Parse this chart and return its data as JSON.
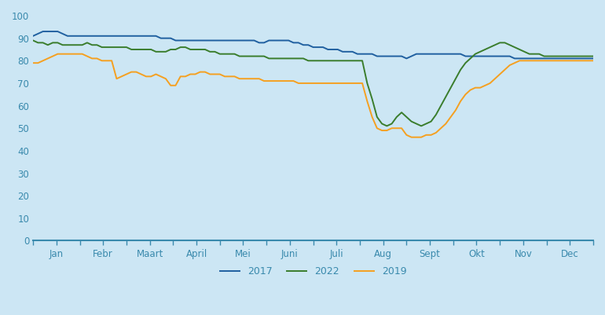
{
  "background_color": "#cce6f4",
  "plot_bg_color": "#cce6f4",
  "line_color_2022": "#3a7d2c",
  "line_color_2019": "#f5a020",
  "line_color_2017": "#2060a0",
  "ylim": [
    0,
    100
  ],
  "yticks": [
    0,
    10,
    20,
    30,
    40,
    50,
    60,
    70,
    80,
    90,
    100
  ],
  "months": [
    "Jan",
    "Febr",
    "Maart",
    "April",
    "Mei",
    "Juni",
    "Juli",
    "Aug",
    "Sept",
    "Okt",
    "Nov",
    "Dec"
  ],
  "legend_labels": [
    "2022",
    "2019",
    "2017"
  ],
  "y2022": [
    89,
    88,
    88,
    87,
    88,
    88,
    87,
    87,
    87,
    87,
    87,
    88,
    87,
    87,
    86,
    86,
    86,
    86,
    86,
    86,
    85,
    85,
    85,
    85,
    85,
    84,
    84,
    84,
    85,
    85,
    86,
    86,
    85,
    85,
    85,
    85,
    84,
    84,
    83,
    83,
    83,
    83,
    82,
    82,
    82,
    82,
    82,
    82,
    81,
    81,
    81,
    81,
    81,
    81,
    81,
    81,
    80,
    80,
    80,
    80,
    80,
    80,
    80,
    80,
    80,
    80,
    80,
    80,
    70,
    63,
    55,
    52,
    51,
    52,
    55,
    57,
    55,
    53,
    52,
    51,
    52,
    53,
    56,
    60,
    64,
    68,
    72,
    76,
    79,
    81,
    83,
    84,
    85,
    86,
    87,
    88,
    88,
    87,
    86,
    85,
    84,
    83,
    83,
    83,
    82,
    82,
    82,
    82,
    82,
    82,
    82,
    82,
    82,
    82,
    82
  ],
  "y2019": [
    79,
    79,
    80,
    81,
    82,
    83,
    83,
    83,
    83,
    83,
    83,
    82,
    81,
    81,
    80,
    80,
    80,
    72,
    73,
    74,
    75,
    75,
    74,
    73,
    73,
    74,
    73,
    72,
    69,
    69,
    73,
    73,
    74,
    74,
    75,
    75,
    74,
    74,
    74,
    73,
    73,
    73,
    72,
    72,
    72,
    72,
    72,
    71,
    71,
    71,
    71,
    71,
    71,
    71,
    70,
    70,
    70,
    70,
    70,
    70,
    70,
    70,
    70,
    70,
    70,
    70,
    70,
    70,
    62,
    55,
    50,
    49,
    49,
    50,
    50,
    50,
    47,
    46,
    46,
    46,
    47,
    47,
    48,
    50,
    52,
    55,
    58,
    62,
    65,
    67,
    68,
    68,
    69,
    70,
    72,
    74,
    76,
    78,
    79,
    80,
    80,
    80,
    80,
    80,
    80,
    80,
    80,
    80,
    80,
    80,
    80,
    80,
    80,
    80,
    80
  ],
  "y2017": [
    91,
    92,
    93,
    93,
    93,
    93,
    92,
    91,
    91,
    91,
    91,
    91,
    91,
    91,
    91,
    91,
    91,
    91,
    91,
    91,
    91,
    91,
    91,
    91,
    91,
    91,
    90,
    90,
    90,
    89,
    89,
    89,
    89,
    89,
    89,
    89,
    89,
    89,
    89,
    89,
    89,
    89,
    89,
    89,
    89,
    89,
    88,
    88,
    89,
    89,
    89,
    89,
    89,
    88,
    88,
    87,
    87,
    86,
    86,
    86,
    85,
    85,
    85,
    84,
    84,
    84,
    83,
    83,
    83,
    83,
    82,
    82,
    82,
    82,
    82,
    82,
    81,
    82,
    83,
    83,
    83,
    83,
    83,
    83,
    83,
    83,
    83,
    83,
    82,
    82,
    82,
    82,
    82,
    82,
    82,
    82,
    82,
    82,
    81,
    81,
    81,
    81,
    81,
    81,
    81,
    81,
    81,
    81,
    81,
    81,
    81,
    81,
    81,
    81,
    81
  ]
}
